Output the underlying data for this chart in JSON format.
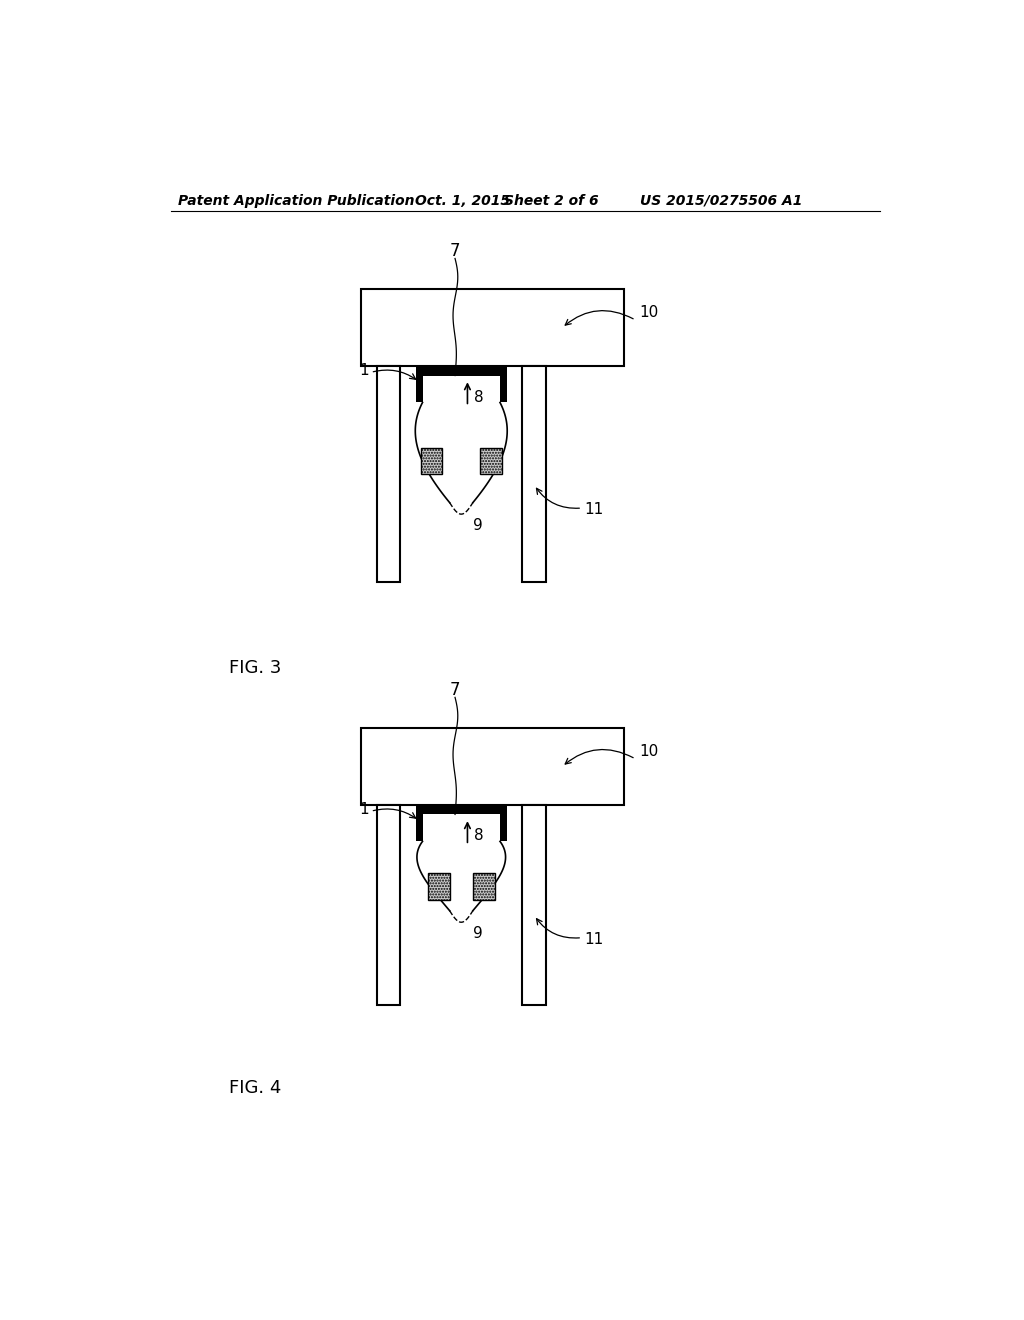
{
  "bg_color": "#ffffff",
  "header_text": "Patent Application Publication",
  "header_date": "Oct. 1, 2015",
  "header_sheet": "Sheet 2 of 6",
  "header_patent": "US 2015/0275506 A1",
  "fig3_label": "FIG. 3",
  "fig4_label": "FIG. 4",
  "label_1": "1",
  "label_7": "7",
  "label_8": "8",
  "label_9": "9",
  "label_10": "10",
  "label_11": "11"
}
